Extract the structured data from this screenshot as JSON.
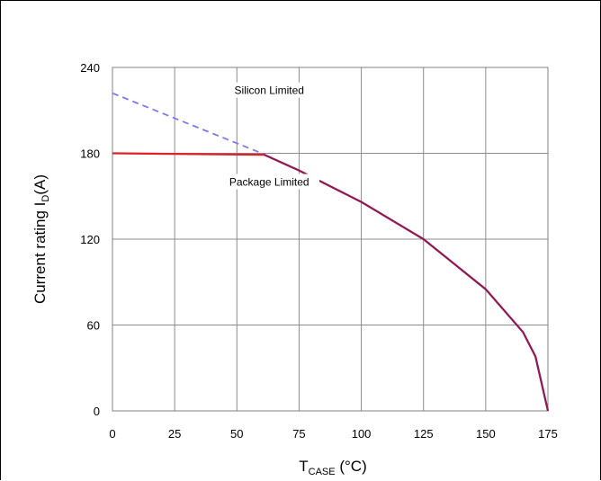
{
  "chart_data": {
    "type": "line",
    "xlabel": {
      "main": "T",
      "sub": "CASE",
      "unit": " (°C)"
    },
    "ylabel": {
      "main": "Current rating I",
      "sub": "D",
      "unit": "(A)"
    },
    "xlim": [
      0,
      175
    ],
    "ylim": [
      0,
      240
    ],
    "xticks": [
      0,
      25,
      50,
      75,
      100,
      125,
      150,
      175
    ],
    "yticks": [
      0,
      60,
      120,
      180,
      240
    ],
    "grid": true,
    "series": [
      {
        "name": "Silicon Limited",
        "color": "#7b7bef",
        "style": "dashed",
        "x": [
          0,
          20,
          40,
          60,
          61,
          75,
          100,
          125,
          150,
          165,
          170,
          175
        ],
        "y": [
          222,
          208,
          194,
          180,
          179,
          168,
          146,
          120,
          85,
          55,
          38,
          0
        ]
      },
      {
        "name": "Package Limited",
        "color": "#e0202a",
        "style": "solid",
        "x": [
          0,
          61,
          75,
          100,
          125,
          150,
          165,
          170,
          175
        ],
        "y": [
          180,
          179,
          168,
          146,
          120,
          85,
          55,
          38,
          0
        ]
      }
    ],
    "overlap_color": "#8b1a5a",
    "annotations": [
      {
        "text": "Silicon Limited",
        "x": 63,
        "y": 222
      },
      {
        "text": "Package Limited",
        "x": 63,
        "y": 158
      }
    ]
  }
}
